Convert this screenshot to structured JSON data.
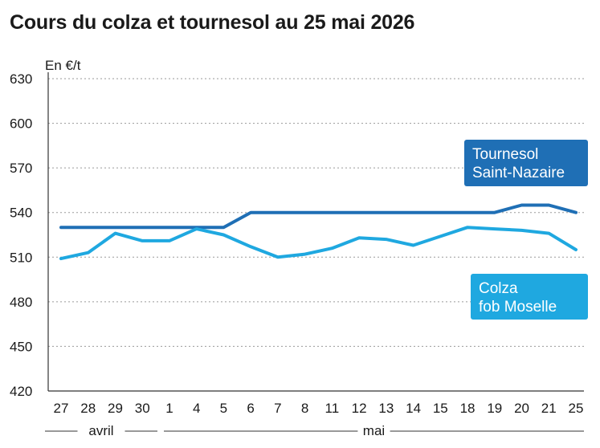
{
  "chart_data": {
    "type": "line",
    "title": "Cours du colza et tournesol au 25 mai 2026",
    "ylabel": "En €/t",
    "ylim": [
      420,
      630
    ],
    "yticks": [
      420,
      450,
      480,
      510,
      540,
      570,
      600,
      630
    ],
    "categories": [
      "27",
      "28",
      "29",
      "30",
      "1",
      "4",
      "5",
      "6",
      "7",
      "8",
      "11",
      "12",
      "13",
      "14",
      "15",
      "18",
      "19",
      "20",
      "21",
      "25"
    ],
    "month_labels": [
      "avril",
      "mai"
    ],
    "grid": true,
    "series": [
      {
        "name": "Tournesol Saint-Nazaire",
        "legend_lines": [
          "Tournesol",
          "Saint-Nazaire"
        ],
        "color": "#1f6fb5",
        "values": [
          530,
          530,
          530,
          530,
          530,
          530,
          530,
          540,
          540,
          540,
          540,
          540,
          540,
          540,
          540,
          540,
          540,
          545,
          545,
          540
        ]
      },
      {
        "name": "Colza fob Moselle",
        "legend_lines": [
          "Colza",
          "fob Moselle"
        ],
        "color": "#1fa8e0",
        "values": [
          509,
          513,
          526,
          521,
          521,
          529,
          525,
          517,
          510,
          512,
          516,
          523,
          522,
          518,
          524,
          530,
          529,
          528,
          526,
          515
        ]
      }
    ]
  }
}
